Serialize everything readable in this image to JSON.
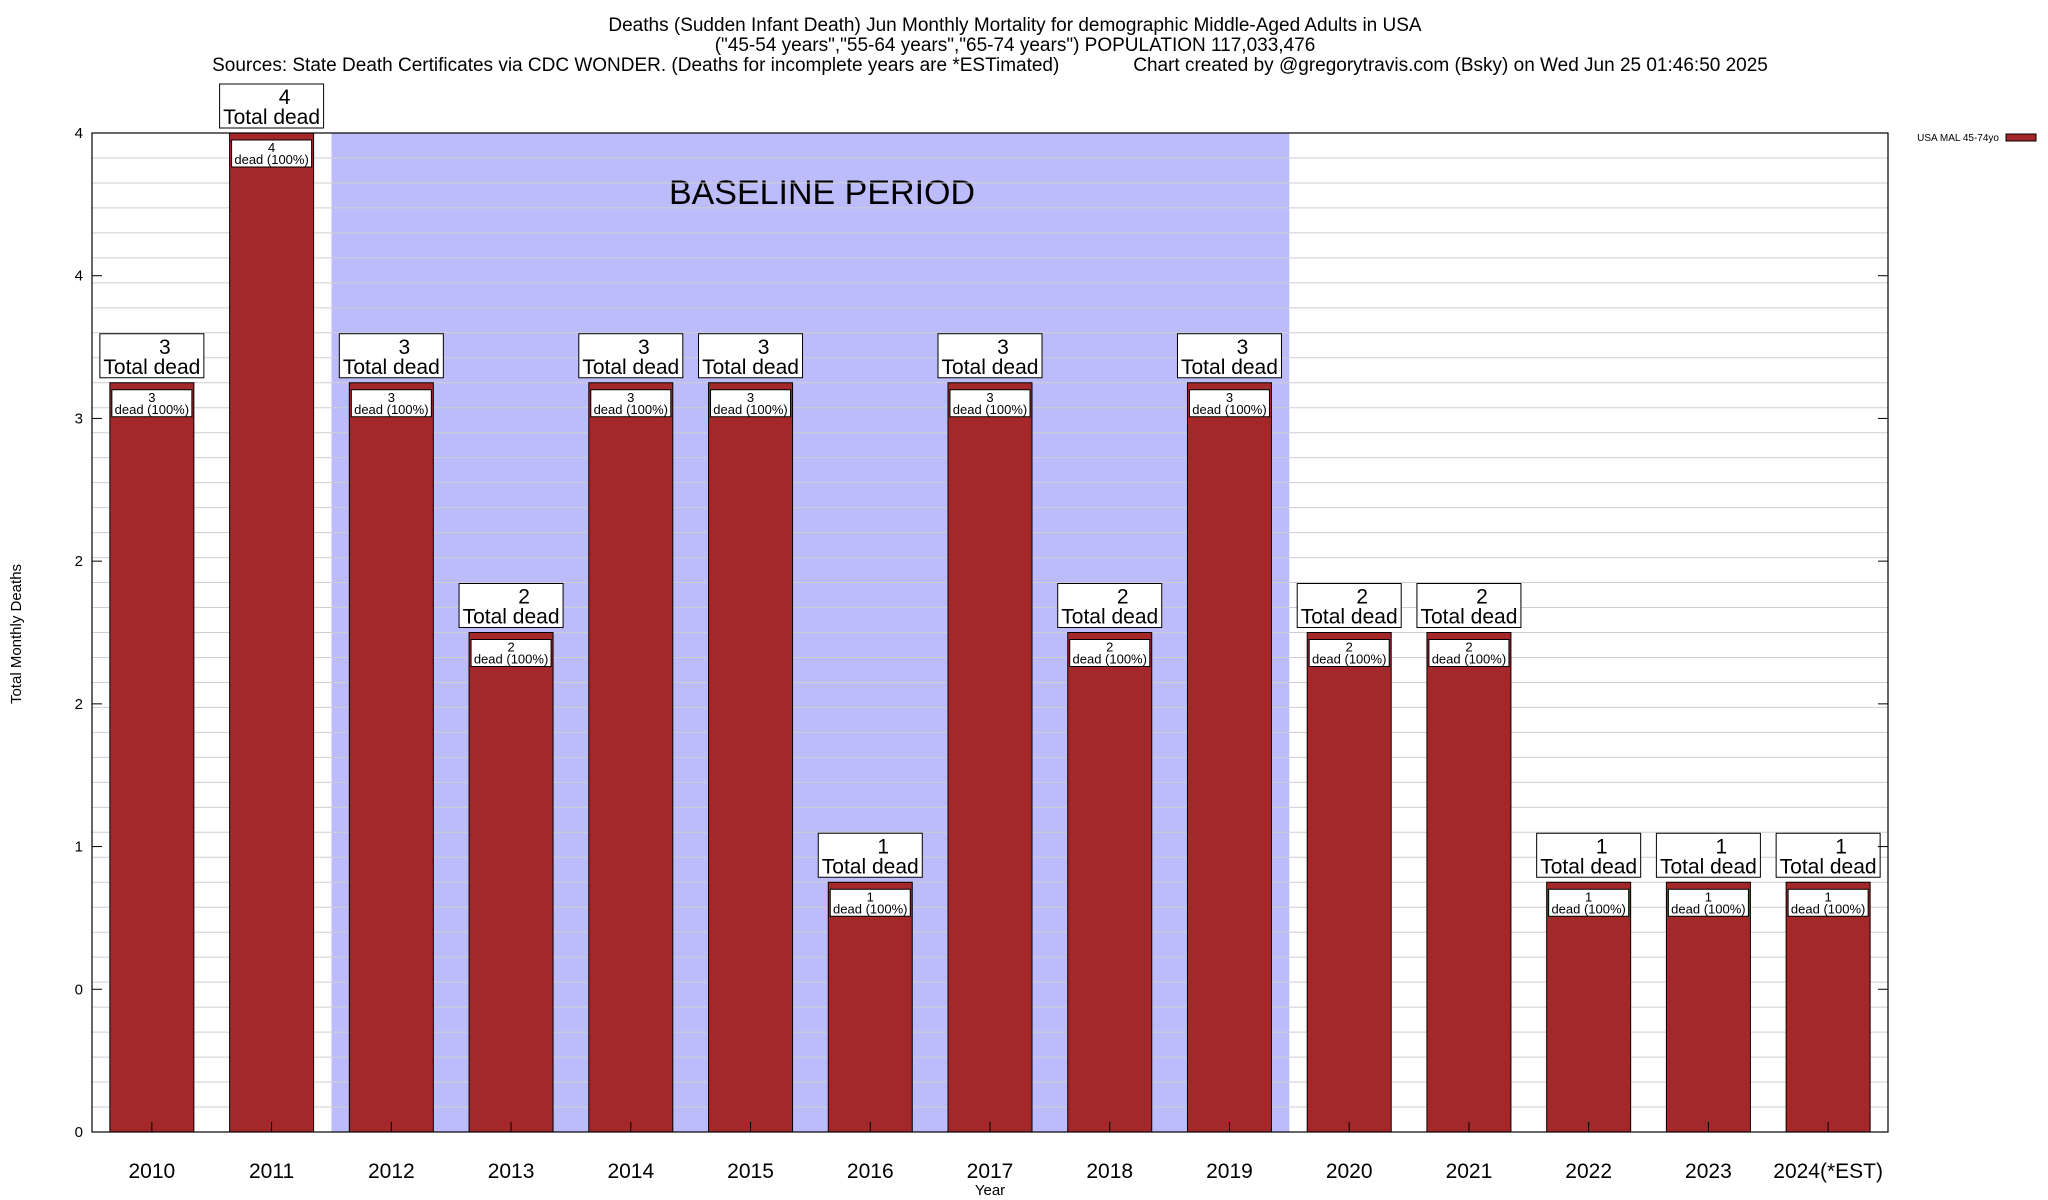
{
  "title_lines": [
    "Deaths (Sudden Infant Death) Jun Monthly Mortality for demographic Middle-Aged Adults in USA",
    "(\"45-54 years\",\"55-64 years\",\"65-74 years\") POPULATION 117,033,476",
    "Sources: State Death Certificates via CDC WONDER. (Deaths for incomplete years are *ESTimated)              Chart created by @gregorytravis.com (Bsky) on Wed Jun 25 01:46:50 2025"
  ],
  "chart_data": {
    "type": "bar",
    "categories": [
      "2010",
      "2011",
      "2012",
      "2013",
      "2014",
      "2015",
      "2016",
      "2017",
      "2018",
      "2019",
      "2020",
      "2021",
      "2022",
      "2023",
      "2024(*EST)"
    ],
    "series": [
      {
        "name": "USA MAL 45-74yo",
        "values": [
          3,
          4,
          3,
          2,
          3,
          3,
          1,
          3,
          2,
          3,
          2,
          2,
          1,
          1,
          1
        ]
      }
    ],
    "xlabel": "Year",
    "ylabel": "Total Monthly Deaths",
    "ylim": [
      0,
      4
    ],
    "y_tick_labels": [
      "0",
      "0",
      "1",
      "2",
      "2",
      "3",
      "4",
      "4"
    ],
    "baseline_label": "BASELINE PERIOD",
    "baseline_range": [
      "2012",
      "2019"
    ],
    "total_label_numbers": [
      "3",
      "4",
      "3",
      "2",
      "3",
      "3",
      "1",
      "3",
      "2",
      "3",
      "2",
      "2",
      "1",
      "1",
      "1"
    ],
    "total_label_suffix": "Total dead",
    "inner_label_numbers": [
      "3",
      "4",
      "3",
      "2",
      "3",
      "3",
      "1",
      "3",
      "2",
      "3",
      "2",
      "2",
      "1",
      "1",
      "1"
    ],
    "inner_label_suffix": "dead (100%)",
    "legend_placement": "top-right",
    "grid": true,
    "colors": {
      "bar": "#a4282a",
      "baseline_shade": "#bcbcfb",
      "grid_line": "#cfcfcf"
    }
  }
}
